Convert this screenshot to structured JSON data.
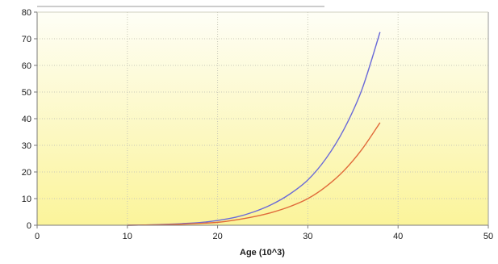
{
  "chart_data": {
    "type": "line",
    "title": "",
    "xlabel": "Age (10^3)",
    "ylabel": "",
    "xlim": [
      0,
      50
    ],
    "ylim": [
      0,
      80
    ],
    "x_ticks": [
      0,
      10,
      20,
      30,
      40,
      50
    ],
    "y_ticks": [
      0,
      10,
      20,
      30,
      40,
      50,
      60,
      70,
      80
    ],
    "grid": true,
    "legend": "none",
    "background_gradient": [
      "#fefef6",
      "#fbf49a"
    ],
    "series": [
      {
        "color": "#6a6ad8",
        "x": [
          10,
          12,
          14,
          16,
          18,
          20,
          22,
          24,
          26,
          28,
          30,
          32,
          34,
          36,
          38
        ],
        "y": [
          0,
          0.1,
          0.3,
          0.6,
          1.0,
          1.8,
          3.0,
          5.0,
          7.8,
          11.7,
          17.0,
          25.0,
          36.0,
          51.0,
          72.5
        ]
      },
      {
        "color": "#e06a3a",
        "x": [
          10,
          12,
          14,
          16,
          18,
          20,
          22,
          24,
          26,
          28,
          30,
          32,
          34,
          36,
          38
        ],
        "y": [
          0,
          0.1,
          0.2,
          0.4,
          0.7,
          1.1,
          2.0,
          3.2,
          4.8,
          7.0,
          10.0,
          14.5,
          20.5,
          28.5,
          38.5
        ]
      }
    ]
  }
}
